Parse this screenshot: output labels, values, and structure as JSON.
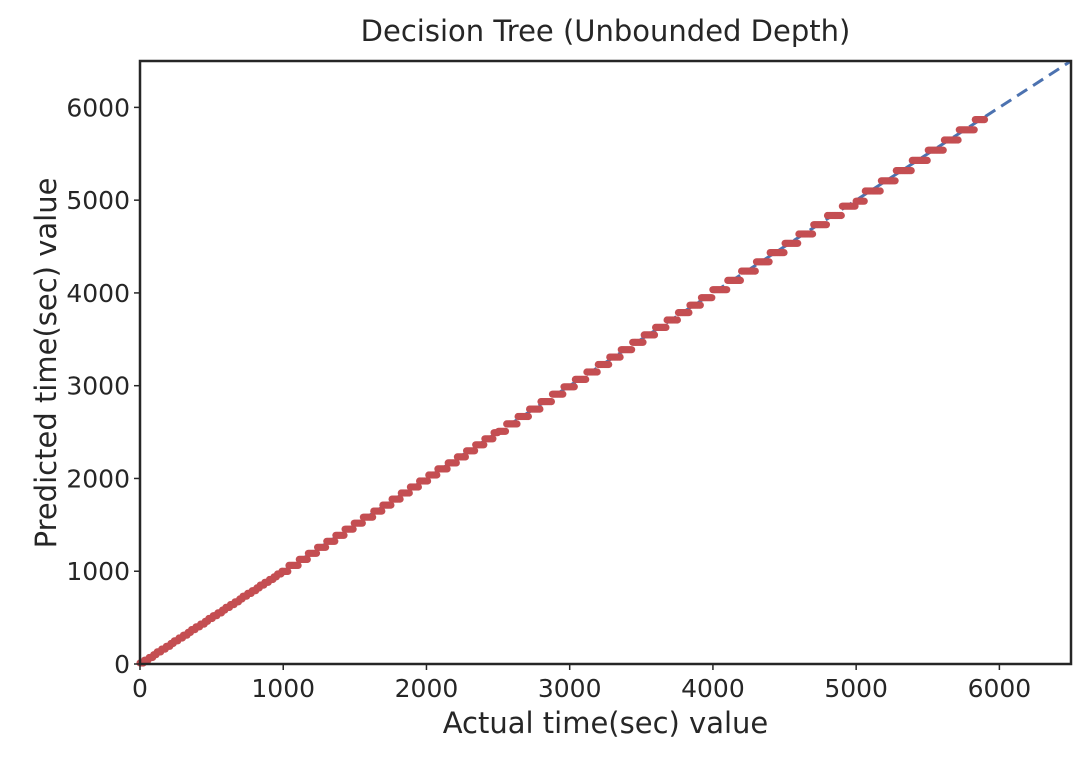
{
  "chart_data": {
    "type": "scatter",
    "title": "Decision Tree (Unbounded Depth)",
    "xlabel": "Actual time(sec) value",
    "ylabel": "Predicted time(sec) value",
    "xlim": [
      0,
      6500
    ],
    "ylim": [
      0,
      6500
    ],
    "x_ticks": [
      "0",
      "1000",
      "2000",
      "3000",
      "4000",
      "5000",
      "6000"
    ],
    "y_ticks": [
      "0",
      "1000",
      "2000",
      "3000",
      "4000",
      "5000",
      "6000"
    ],
    "grid": false,
    "legend": "none",
    "reference_line": {
      "x": [
        0,
        6500
      ],
      "y": [
        0,
        6500
      ],
      "style": "dashed",
      "color": "#4c72b0"
    },
    "series": [
      {
        "color": "#c44e52",
        "x_range": [
          0,
          5900
        ],
        "points": [
          [
            0,
            0
          ],
          [
            50,
            50
          ],
          [
            100,
            100
          ],
          [
            200,
            200
          ],
          [
            300,
            300
          ],
          [
            400,
            400
          ],
          [
            500,
            500
          ],
          [
            600,
            600
          ],
          [
            700,
            700
          ],
          [
            800,
            800
          ],
          [
            900,
            900
          ],
          [
            1000,
            1000
          ],
          [
            1200,
            1200
          ],
          [
            1400,
            1400
          ],
          [
            1600,
            1600
          ],
          [
            1800,
            1800
          ],
          [
            2000,
            2000
          ],
          [
            2200,
            2200
          ],
          [
            2400,
            2400
          ],
          [
            2600,
            2600
          ],
          [
            2800,
            2800
          ],
          [
            3000,
            3000
          ],
          [
            3200,
            3200
          ],
          [
            3400,
            3400
          ],
          [
            3600,
            3600
          ],
          [
            3800,
            3800
          ],
          [
            4000,
            4000
          ],
          [
            4200,
            4200
          ],
          [
            4400,
            4400
          ],
          [
            4600,
            4600
          ],
          [
            4800,
            4800
          ],
          [
            5000,
            5000
          ],
          [
            5200,
            5200
          ],
          [
            5400,
            5400
          ],
          [
            5600,
            5600
          ],
          [
            5800,
            5800
          ],
          [
            5900,
            5900
          ]
        ]
      }
    ]
  }
}
